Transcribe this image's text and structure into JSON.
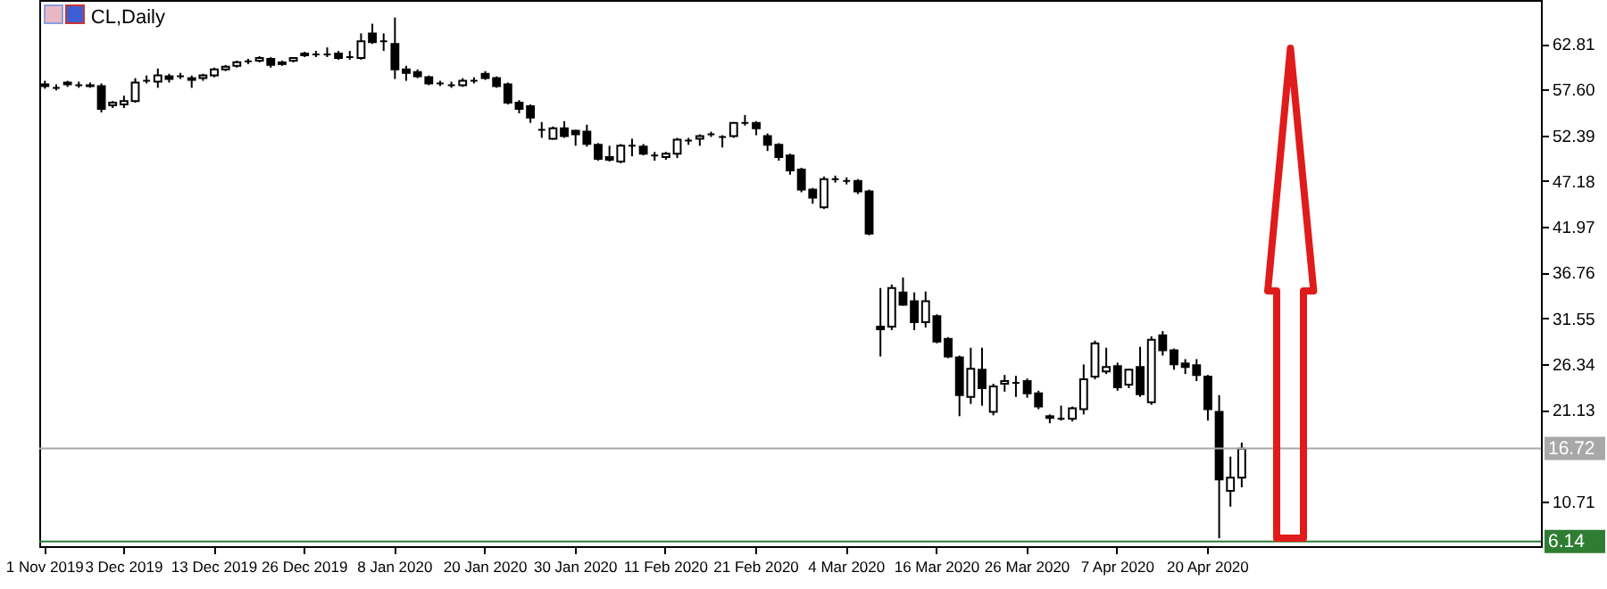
{
  "chart_data": {
    "type": "candlestick",
    "title": "CL,Daily",
    "categories": [
      "1 Nov 2019",
      null,
      null,
      null,
      null,
      null,
      null,
      "3 Dec 2019",
      null,
      null,
      null,
      null,
      null,
      null,
      null,
      "13 Dec 2019",
      null,
      null,
      null,
      null,
      null,
      null,
      null,
      "26 Dec 2019",
      null,
      null,
      null,
      null,
      null,
      null,
      null,
      "8 Jan 2020",
      null,
      null,
      null,
      null,
      null,
      null,
      null,
      "20 Jan 2020",
      null,
      null,
      null,
      null,
      null,
      null,
      null,
      "30 Jan 2020",
      null,
      null,
      null,
      null,
      null,
      null,
      null,
      "11 Feb 2020",
      null,
      null,
      null,
      null,
      null,
      null,
      null,
      "21 Feb 2020",
      null,
      null,
      null,
      null,
      null,
      null,
      null,
      "4 Mar 2020",
      null,
      null,
      null,
      null,
      null,
      null,
      null,
      "16 Mar 2020",
      null,
      null,
      null,
      null,
      null,
      null,
      null,
      "26 Mar 2020",
      null,
      null,
      null,
      null,
      null,
      null,
      null,
      "7 Apr 2020",
      null,
      null,
      null,
      null,
      null,
      null,
      null,
      "20 Apr 2020",
      null,
      null,
      null,
      null,
      null,
      null,
      null,
      null,
      null,
      null,
      null,
      null,
      null,
      null,
      null,
      null,
      null,
      null,
      null,
      null,
      null,
      null,
      null,
      null,
      null,
      null,
      null,
      null,
      null
    ],
    "ohlc": [
      [
        58.2,
        58.6,
        57.7,
        58.0
      ],
      [
        57.8,
        58.2,
        57.5,
        57.8
      ],
      [
        58.2,
        58.6,
        57.9,
        58.4
      ],
      [
        58.1,
        58.5,
        57.8,
        58.1
      ],
      [
        58.1,
        58.4,
        57.8,
        58.0
      ],
      [
        58.0,
        58.3,
        55.0,
        55.4
      ],
      [
        55.8,
        56.3,
        55.5,
        56.1
      ],
      [
        55.9,
        56.9,
        55.5,
        56.3
      ],
      [
        56.3,
        58.9,
        56.1,
        58.4
      ],
      [
        58.6,
        59.2,
        58.3,
        58.6
      ],
      [
        58.5,
        60.0,
        57.8,
        59.2
      ],
      [
        59.1,
        59.4,
        58.4,
        58.8
      ],
      [
        59.1,
        59.5,
        58.8,
        59.1
      ],
      [
        58.9,
        59.2,
        57.8,
        58.7
      ],
      [
        58.9,
        59.4,
        58.6,
        59.2
      ],
      [
        59.2,
        60.1,
        59.0,
        59.9
      ],
      [
        59.9,
        60.4,
        59.7,
        60.2
      ],
      [
        60.3,
        60.9,
        60.1,
        60.7
      ],
      [
        60.8,
        61.1,
        60.5,
        60.8
      ],
      [
        60.9,
        61.4,
        60.7,
        61.2
      ],
      [
        61.1,
        61.3,
        60.1,
        60.4
      ],
      [
        60.5,
        60.9,
        60.3,
        60.7
      ],
      [
        60.9,
        61.3,
        60.7,
        61.2
      ],
      [
        61.5,
        61.9,
        61.3,
        61.7
      ],
      [
        61.6,
        62.0,
        61.3,
        61.6
      ],
      [
        61.6,
        62.4,
        61.3,
        61.6
      ],
      [
        61.7,
        62.0,
        61.0,
        61.2
      ],
      [
        61.3,
        62.0,
        61.0,
        61.3
      ],
      [
        61.2,
        64.0,
        61.0,
        63.1
      ],
      [
        64.0,
        65.1,
        62.8,
        63.0
      ],
      [
        63.1,
        64.0,
        62.0,
        63.1
      ],
      [
        62.8,
        65.8,
        58.8,
        59.9
      ],
      [
        59.9,
        60.3,
        58.6,
        59.5
      ],
      [
        59.6,
        59.9,
        58.9,
        59.1
      ],
      [
        59.0,
        59.2,
        58.1,
        58.3
      ],
      [
        58.3,
        58.6,
        58.0,
        58.3
      ],
      [
        58.1,
        58.5,
        57.8,
        58.1
      ],
      [
        58.1,
        58.9,
        57.9,
        58.6
      ],
      [
        58.6,
        59.0,
        58.3,
        58.6
      ],
      [
        59.4,
        59.7,
        58.7,
        58.9
      ],
      [
        58.9,
        59.1,
        57.8,
        58.0
      ],
      [
        58.2,
        58.4,
        55.9,
        56.1
      ],
      [
        56.1,
        56.4,
        54.9,
        55.4
      ],
      [
        55.7,
        55.9,
        53.8,
        54.4
      ],
      [
        53.0,
        53.9,
        52.1,
        53.0
      ],
      [
        52.0,
        53.4,
        51.9,
        53.2
      ],
      [
        53.2,
        54.0,
        52.1,
        52.3
      ],
      [
        52.9,
        53.0,
        51.2,
        52.5
      ],
      [
        52.8,
        53.6,
        51.1,
        51.4
      ],
      [
        51.3,
        51.5,
        49.5,
        49.7
      ],
      [
        49.9,
        51.2,
        49.4,
        49.6
      ],
      [
        49.4,
        51.4,
        49.2,
        51.2
      ],
      [
        51.2,
        52.0,
        50.0,
        51.2
      ],
      [
        51.1,
        51.4,
        50.1,
        50.3
      ],
      [
        50.1,
        50.5,
        49.5,
        50.1
      ],
      [
        49.9,
        50.5,
        49.6,
        50.3
      ],
      [
        50.3,
        52.1,
        49.8,
        51.9
      ],
      [
        51.8,
        52.1,
        51.3,
        51.8
      ],
      [
        52.0,
        52.5,
        51.2,
        52.3
      ],
      [
        52.5,
        52.8,
        52.2,
        52.5
      ],
      [
        52.2,
        52.4,
        51.0,
        52.2
      ],
      [
        52.3,
        53.9,
        52.1,
        53.8
      ],
      [
        53.8,
        54.7,
        53.5,
        53.8
      ],
      [
        53.8,
        54.0,
        52.4,
        53.2
      ],
      [
        52.3,
        52.6,
        50.6,
        51.3
      ],
      [
        51.3,
        51.5,
        49.5,
        49.9
      ],
      [
        50.1,
        50.3,
        47.9,
        48.4
      ],
      [
        48.5,
        48.7,
        45.9,
        46.2
      ],
      [
        46.2,
        46.4,
        44.6,
        45.3
      ],
      [
        44.2,
        47.7,
        44.0,
        47.4
      ],
      [
        47.4,
        47.8,
        47.0,
        47.4
      ],
      [
        47.2,
        47.6,
        46.8,
        47.2
      ],
      [
        47.2,
        47.4,
        45.7,
        46.0
      ],
      [
        46.0,
        46.2,
        41.0,
        41.2
      ],
      [
        30.6,
        35.0,
        27.2,
        30.3
      ],
      [
        30.6,
        35.4,
        30.2,
        35.0
      ],
      [
        34.5,
        36.2,
        33.0,
        33.1
      ],
      [
        33.5,
        34.5,
        30.2,
        31.1
      ],
      [
        31.1,
        34.6,
        30.5,
        33.5
      ],
      [
        31.8,
        32.0,
        28.7,
        28.9
      ],
      [
        29.2,
        29.4,
        27.0,
        27.2
      ],
      [
        27.1,
        27.3,
        20.4,
        22.8
      ],
      [
        22.6,
        28.2,
        21.8,
        25.8
      ],
      [
        25.7,
        28.2,
        21.6,
        23.6
      ],
      [
        20.9,
        24.1,
        20.5,
        23.8
      ],
      [
        24.1,
        25.1,
        23.2,
        24.4
      ],
      [
        24.2,
        25.0,
        22.6,
        24.2
      ],
      [
        24.4,
        24.7,
        22.5,
        23.0
      ],
      [
        23.0,
        23.3,
        21.2,
        21.5
      ],
      [
        20.4,
        20.6,
        19.6,
        20.2
      ],
      [
        20.1,
        21.6,
        19.9,
        20.1
      ],
      [
        20.1,
        21.5,
        19.8,
        21.3
      ],
      [
        21.2,
        26.3,
        20.6,
        24.6
      ],
      [
        24.9,
        29.0,
        24.6,
        28.7
      ],
      [
        25.5,
        28.2,
        25.2,
        26.0
      ],
      [
        26.1,
        26.5,
        23.3,
        23.7
      ],
      [
        24.0,
        25.8,
        23.6,
        25.7
      ],
      [
        26.0,
        28.3,
        22.6,
        22.9
      ],
      [
        22.0,
        29.5,
        21.7,
        29.1
      ],
      [
        29.6,
        30.1,
        27.3,
        27.9
      ],
      [
        27.9,
        28.1,
        25.7,
        26.3
      ],
      [
        26.4,
        26.9,
        25.2,
        26.0
      ],
      [
        26.2,
        26.9,
        24.4,
        25.1
      ],
      [
        24.9,
        25.1,
        19.9,
        21.2
      ],
      [
        20.9,
        22.8,
        6.5,
        13.2
      ],
      [
        11.9,
        15.8,
        10.1,
        13.4
      ],
      [
        13.4,
        17.4,
        12.3,
        16.7
      ],
      null,
      null,
      null,
      null,
      null,
      null,
      null,
      null,
      null,
      null,
      null,
      null,
      null,
      null,
      null,
      null,
      null,
      null,
      null,
      null,
      null,
      null,
      null,
      null,
      null,
      null
    ],
    "ylim": [
      5.6,
      67.8
    ],
    "yticks": [
      62.81,
      {
        "value": 57.6,
        "label": "57.60"
      },
      52.39,
      47.18,
      41.97,
      36.76,
      31.55,
      26.34,
      21.13,
      10.71
    ],
    "ref_lines": [
      {
        "axis": "y",
        "value": 16.72,
        "label": "16.72",
        "color": "#a8a8a8"
      },
      {
        "axis": "y",
        "value": 6.14,
        "label": "6.14",
        "color": "#2e7d32"
      }
    ]
  }
}
